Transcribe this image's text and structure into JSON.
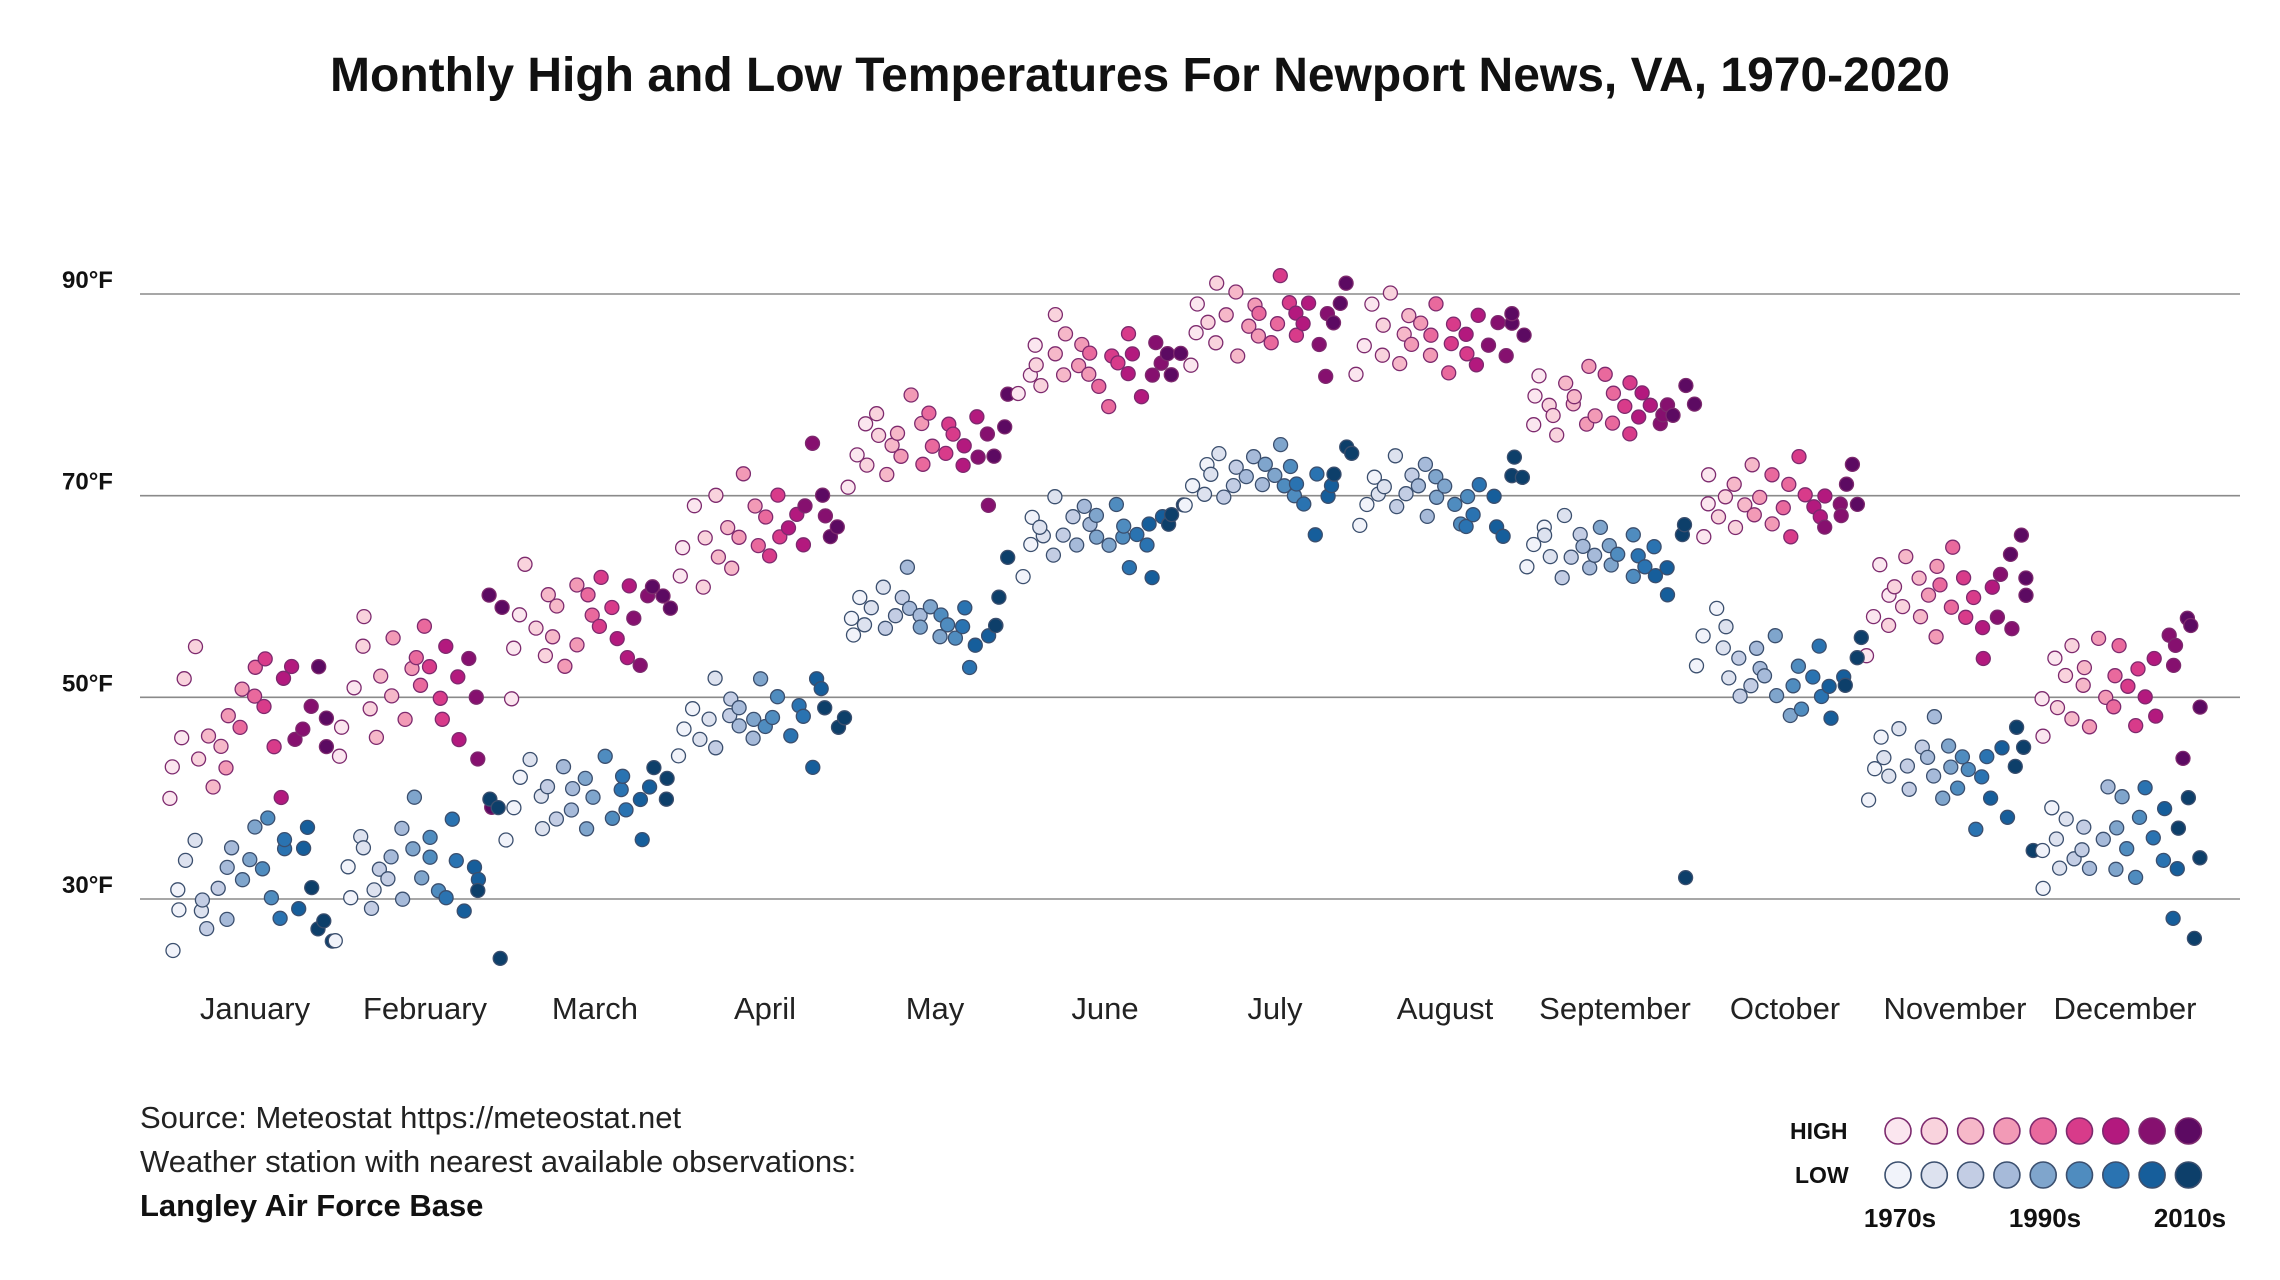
{
  "chart_data": {
    "type": "scatter",
    "title": "Monthly High and Low Temperatures For Newport News, VA, 1970-2020",
    "y_axis": {
      "ticks": [
        "30°F",
        "50°F",
        "70°F",
        "90°F"
      ],
      "tick_values": [
        30,
        50,
        70,
        90
      ],
      "ylim": [
        20,
        96
      ],
      "grid": true
    },
    "categories": [
      "January",
      "February",
      "March",
      "April",
      "May",
      "June",
      "July",
      "August",
      "September",
      "October",
      "November",
      "December"
    ],
    "decade_colors": {
      "high": [
        "#fbe6ef",
        "#f9d3dd",
        "#f6b8c9",
        "#f29ab6",
        "#e9699d",
        "#d83b8a",
        "#b3197e",
        "#86106f",
        "#5c0a62"
      ],
      "low": [
        "#f1f3fa",
        "#dde2ef",
        "#c3cde4",
        "#a6bad9",
        "#7fa5cc",
        "#4f8cbf",
        "#2a73b1",
        "#165e9b",
        "#0d3f6a"
      ],
      "stroke_high": "#7d2a6e",
      "stroke_low": "#3b4f6e"
    },
    "series": [
      {
        "name": "High",
        "months": [
          {
            "month": "January",
            "values": [
              40,
              43,
              46,
              52,
              55,
              44,
              46,
              41,
              45,
              43,
              48,
              51,
              47,
              50,
              53,
              49,
              54,
              45,
              40,
              52,
              53,
              46,
              47,
              49,
              53,
              48,
              45
            ]
          },
          {
            "month": "February",
            "values": [
              44,
              47,
              51,
              55,
              58,
              49,
              46,
              52,
              50,
              56,
              48,
              53,
              54,
              51,
              57,
              53,
              50,
              48,
              55,
              52,
              46,
              54,
              50,
              44,
              39,
              60,
              59
            ]
          },
          {
            "month": "March",
            "values": [
              50,
              55,
              58,
              63,
              57,
              54,
              60,
              56,
              59,
              53,
              61,
              55,
              60,
              58,
              57,
              62,
              59,
              56,
              54,
              61,
              58,
              53,
              60,
              61,
              60,
              59
            ]
          },
          {
            "month": "April",
            "values": [
              62,
              65,
              69,
              61,
              66,
              70,
              64,
              67,
              63,
              66,
              72,
              69,
              65,
              68,
              64,
              66,
              70,
              67,
              68,
              65,
              69,
              75,
              68,
              70,
              66,
              67
            ]
          },
          {
            "month": "May",
            "values": [
              71,
              74,
              77,
              73,
              76,
              78,
              72,
              75,
              76,
              74,
              80,
              77,
              73,
              78,
              75,
              74,
              77,
              76,
              73,
              75,
              78,
              74,
              69,
              76,
              74,
              77,
              80
            ]
          },
          {
            "month": "June",
            "values": [
              80,
              82,
              85,
              83,
              81,
              88,
              84,
              82,
              86,
              83,
              85,
              82,
              84,
              81,
              79,
              84,
              83,
              86,
              82,
              84,
              80,
              82,
              85,
              83,
              84,
              82,
              84
            ]
          },
          {
            "month": "July",
            "values": [
              83,
              86,
              89,
              87,
              85,
              91,
              88,
              84,
              90,
              87,
              89,
              86,
              88,
              85,
              87,
              92,
              89,
              86,
              88,
              87,
              89,
              85,
              82,
              88,
              87,
              89,
              91
            ]
          },
          {
            "month": "August",
            "values": [
              82,
              85,
              89,
              84,
              87,
              90,
              83,
              86,
              88,
              85,
              87,
              84,
              86,
              89,
              82,
              85,
              87,
              84,
              86,
              83,
              88,
              85,
              87,
              84,
              87,
              88,
              86
            ]
          },
          {
            "month": "September",
            "values": [
              77,
              80,
              82,
              79,
              78,
              76,
              81,
              79,
              80,
              77,
              83,
              78,
              82,
              80,
              77,
              79,
              81,
              76,
              78,
              80,
              79,
              77,
              78,
              79,
              78,
              81,
              79
            ]
          },
          {
            "month": "October",
            "values": [
              66,
              69,
              72,
              68,
              70,
              67,
              71,
              69,
              73,
              68,
              70,
              67,
              72,
              69,
              71,
              66,
              74,
              70,
              69,
              68,
              70,
              67,
              69,
              68,
              71,
              73,
              69
            ]
          },
          {
            "month": "November",
            "values": [
              54,
              58,
              63,
              60,
              57,
              61,
              59,
              64,
              62,
              58,
              60,
              63,
              56,
              61,
              59,
              65,
              62,
              58,
              60,
              57,
              54,
              61,
              62,
              58,
              57,
              64,
              66,
              62,
              60
            ]
          },
          {
            "month": "December",
            "values": [
              46,
              50,
              54,
              49,
              52,
              55,
              48,
              51,
              53,
              47,
              56,
              50,
              49,
              52,
              55,
              51,
              47,
              53,
              50,
              54,
              48,
              56,
              53,
              55,
              44,
              58,
              57,
              49
            ]
          }
        ]
      },
      {
        "name": "Low",
        "months": [
          {
            "month": "January",
            "values": [
              25,
              29,
              31,
              34,
              36,
              29,
              30,
              27,
              31,
              28,
              33,
              35,
              32,
              34,
              37,
              33,
              38,
              30,
              28,
              35,
              36,
              29,
              35,
              37,
              31,
              27,
              28,
              26
            ]
          },
          {
            "month": "February",
            "values": [
              26,
              30,
              33,
              36,
              35,
              31,
              29,
              33,
              32,
              34,
              37,
              30,
              35,
              40,
              32,
              34,
              36,
              31,
              30,
              38,
              34,
              29,
              33,
              32,
              31,
              40,
              39,
              24
            ]
          },
          {
            "month": "March",
            "values": [
              36,
              39,
              42,
              44,
              40,
              37,
              41,
              38,
              43,
              39,
              41,
              37,
              42,
              40,
              44,
              38,
              41,
              42,
              39,
              40,
              36,
              41,
              43,
              42,
              40
            ]
          },
          {
            "month": "April",
            "values": [
              44,
              47,
              49,
              46,
              48,
              52,
              45,
              48,
              50,
              47,
              49,
              46,
              48,
              52,
              47,
              48,
              50,
              46,
              49,
              48,
              43,
              52,
              51,
              49,
              47,
              48
            ]
          },
          {
            "month": "May",
            "values": [
              56,
              58,
              60,
              57,
              59,
              61,
              57,
              58,
              60,
              59,
              63,
              58,
              57,
              59,
              56,
              58,
              57,
              56,
              59,
              57,
              53,
              55,
              56,
              57,
              57,
              60,
              64
            ]
          },
          {
            "month": "June",
            "values": [
              62,
              65,
              68,
              66,
              67,
              70,
              64,
              66,
              68,
              65,
              69,
              67,
              66,
              68,
              65,
              69,
              66,
              67,
              63,
              66,
              65,
              67,
              62,
              68,
              67,
              68,
              69
            ]
          },
          {
            "month": "July",
            "values": [
              69,
              71,
              73,
              70,
              72,
              74,
              70,
              71,
              73,
              72,
              74,
              71,
              73,
              72,
              75,
              71,
              73,
              70,
              71,
              69,
              72,
              66,
              70,
              71,
              72,
              75,
              74
            ]
          },
          {
            "month": "August",
            "values": [
              67,
              69,
              72,
              70,
              71,
              74,
              69,
              70,
              72,
              71,
              73,
              68,
              70,
              72,
              71,
              69,
              67,
              70,
              67,
              68,
              71,
              70,
              67,
              66,
              72,
              74,
              72
            ]
          },
          {
            "month": "September",
            "values": [
              63,
              65,
              67,
              66,
              64,
              68,
              62,
              64,
              66,
              65,
              63,
              64,
              67,
              65,
              63,
              64,
              62,
              66,
              64,
              63,
              65,
              62,
              60,
              63,
              66,
              67,
              32
            ]
          },
          {
            "month": "October",
            "values": [
              53,
              56,
              59,
              55,
              52,
              57,
              50,
              54,
              51,
              53,
              55,
              52,
              50,
              56,
              48,
              51,
              53,
              49,
              52,
              55,
              50,
              51,
              48,
              52,
              51,
              54,
              56
            ]
          },
          {
            "month": "November",
            "values": [
              40,
              43,
              46,
              44,
              42,
              47,
              41,
              43,
              45,
              44,
              42,
              48,
              40,
              43,
              45,
              41,
              44,
              43,
              37,
              42,
              44,
              40,
              45,
              38,
              43,
              47,
              45,
              35
            ]
          },
          {
            "month": "December",
            "values": [
              31,
              35,
              39,
              36,
              33,
              38,
              34,
              35,
              37,
              33,
              36,
              41,
              33,
              37,
              40,
              35,
              32,
              38,
              41,
              36,
              34,
              39,
              28,
              33,
              37,
              40,
              26,
              34
            ]
          }
        ]
      }
    ],
    "annotations": [
      {
        "month": "August",
        "series": "Low",
        "value": 32
      },
      {
        "month": "October",
        "series": "Low",
        "value": 32
      }
    ],
    "legend": {
      "placement": "bottom-right",
      "high_label": "HIGH",
      "low_label": "LOW",
      "decades": [
        "1970s",
        "1990s",
        "2010s"
      ]
    }
  },
  "footer": {
    "source": "Source: Meteostat https://meteostat.net",
    "station_note": "Weather station with nearest available observations:",
    "station_name": "Langley Air Force Base"
  }
}
